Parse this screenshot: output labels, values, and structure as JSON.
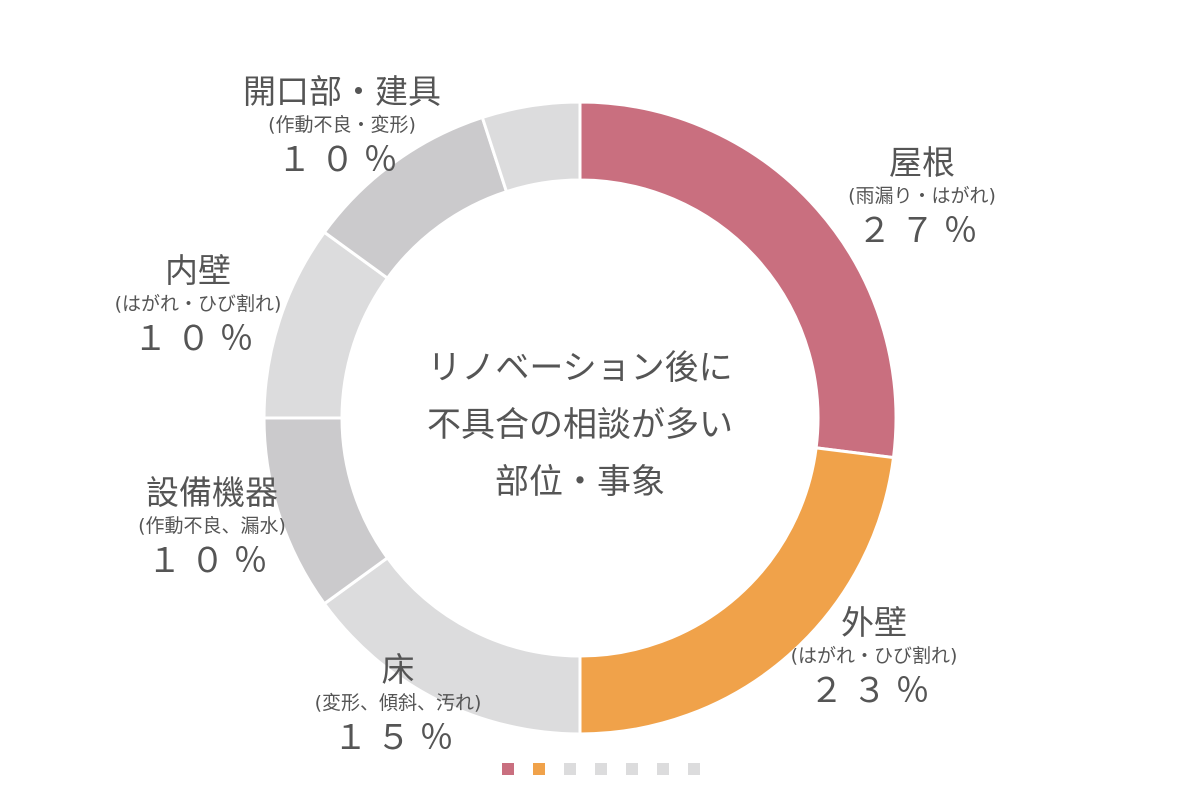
{
  "chart_data": {
    "type": "donut",
    "center_text": [
      "リノベーション後に",
      "不具合の相談が多い",
      "部位・事象"
    ],
    "series": [
      {
        "name": "屋根",
        "note": "(雨漏り・はがれ)",
        "value": 27,
        "value_label": "２７％",
        "color": "#c96f7f"
      },
      {
        "name": "外壁",
        "note": "(はがれ・ひび割れ)",
        "value": 23,
        "value_label": "２３％",
        "color": "#f0a24a"
      },
      {
        "name": "床",
        "note": "(変形、傾斜、汚れ)",
        "value": 15,
        "value_label": "１５％",
        "color": "#dcdcdd"
      },
      {
        "name": "設備機器",
        "note": "(作動不良、漏水)",
        "value": 10,
        "value_label": "１０％",
        "color": "#cbcacc"
      },
      {
        "name": "内壁",
        "note": "(はがれ・ひび割れ)",
        "value": 10,
        "value_label": "１０％",
        "color": "#dcdcdd"
      },
      {
        "name": "開口部・建具",
        "note": "(作動不良・変形)",
        "value": 10,
        "value_label": "１０％",
        "color": "#cbcacc"
      },
      {
        "name": "",
        "note": "",
        "value": 5,
        "value_label": "",
        "color": "#dcdcdd"
      }
    ]
  }
}
